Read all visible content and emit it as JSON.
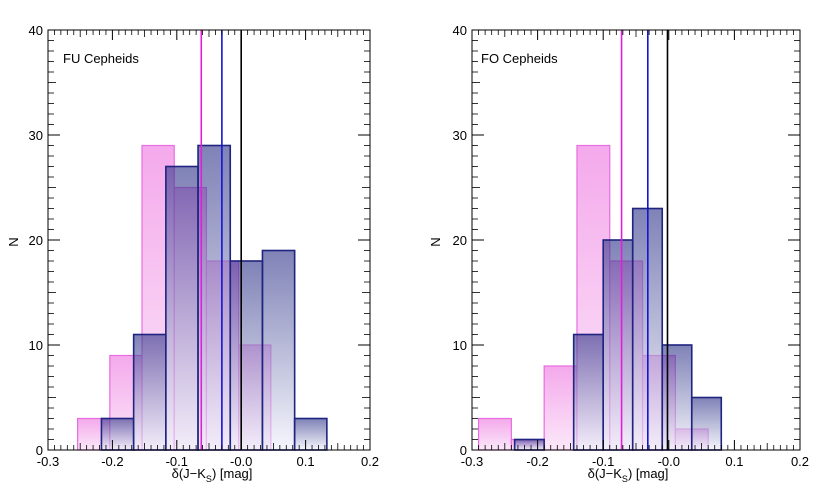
{
  "colors": {
    "blue_dark": "#2a2f86",
    "blue_light": "#eef0fa",
    "blue_edge": "#1f2480",
    "pink_top": "#f29ae8",
    "pink_light": "#fbe4f8",
    "pink_edge": "#e96de0",
    "line_magenta": "#e020d8",
    "line_blue": "#1515d0",
    "line_black": "#000000"
  },
  "chart_data": [
    {
      "type": "histogram",
      "label": "FU Cepheids",
      "xlabel": "δ(J−K_S) [mag]",
      "ylabel": "N",
      "xlim": [
        -0.3,
        0.2
      ],
      "ylim": [
        0,
        40
      ],
      "x_ticks": [
        "-0.3",
        "-0.2",
        "-0.1",
        "-0.0",
        "0.1",
        "0.2"
      ],
      "y_ticks": [
        "0",
        "10",
        "20",
        "30",
        "40"
      ],
      "series": [
        {
          "name": "blue",
          "bins": [
            {
              "x0": -0.217,
              "x1": -0.167,
              "n": 3
            },
            {
              "x0": -0.167,
              "x1": -0.117,
              "n": 11
            },
            {
              "x0": -0.117,
              "x1": -0.067,
              "n": 27
            },
            {
              "x0": -0.067,
              "x1": -0.017,
              "n": 29
            },
            {
              "x0": -0.017,
              "x1": 0.033,
              "n": 18
            },
            {
              "x0": 0.033,
              "x1": 0.083,
              "n": 19
            },
            {
              "x0": 0.083,
              "x1": 0.133,
              "n": 3
            }
          ]
        },
        {
          "name": "magenta",
          "bins": [
            {
              "x0": -0.254,
              "x1": -0.204,
              "n": 3
            },
            {
              "x0": -0.204,
              "x1": -0.154,
              "n": 9
            },
            {
              "x0": -0.154,
              "x1": -0.104,
              "n": 29
            },
            {
              "x0": -0.104,
              "x1": -0.054,
              "n": 25
            },
            {
              "x0": -0.054,
              "x1": -0.004,
              "n": 18
            },
            {
              "x0": -0.004,
              "x1": 0.046,
              "n": 10
            }
          ]
        }
      ],
      "vlines": [
        {
          "name": "magenta-mean",
          "x": -0.062
        },
        {
          "name": "blue-mean",
          "x": -0.03
        },
        {
          "name": "zero",
          "x": 0.0
        }
      ]
    },
    {
      "type": "histogram",
      "label": "FO Cepheids",
      "xlabel": "δ(J−K_S) [mag]",
      "ylabel": "N",
      "xlim": [
        -0.3,
        0.2
      ],
      "ylim": [
        0,
        40
      ],
      "x_ticks": [
        "-0.3",
        "-0.2",
        "-0.1",
        "-0.0",
        "0.1",
        "0.2"
      ],
      "y_ticks": [
        "0",
        "10",
        "20",
        "30",
        "40"
      ],
      "series": [
        {
          "name": "blue",
          "bins": [
            {
              "x0": -0.235,
              "x1": -0.19,
              "n": 1
            },
            {
              "x0": -0.145,
              "x1": -0.1,
              "n": 11
            },
            {
              "x0": -0.1,
              "x1": -0.055,
              "n": 20
            },
            {
              "x0": -0.055,
              "x1": -0.01,
              "n": 23
            },
            {
              "x0": -0.01,
              "x1": 0.035,
              "n": 10
            },
            {
              "x0": 0.035,
              "x1": 0.08,
              "n": 5
            }
          ]
        },
        {
          "name": "magenta",
          "bins": [
            {
              "x0": -0.29,
              "x1": -0.24,
              "n": 3
            },
            {
              "x0": -0.24,
              "x1": -0.19,
              "n": 1
            },
            {
              "x0": -0.19,
              "x1": -0.14,
              "n": 8
            },
            {
              "x0": -0.14,
              "x1": -0.09,
              "n": 29
            },
            {
              "x0": -0.09,
              "x1": -0.04,
              "n": 18
            },
            {
              "x0": -0.04,
              "x1": 0.01,
              "n": 9
            },
            {
              "x0": 0.01,
              "x1": 0.06,
              "n": 2
            }
          ]
        }
      ],
      "vlines": [
        {
          "name": "magenta-mean",
          "x": -0.072
        },
        {
          "name": "blue-mean",
          "x": -0.032
        },
        {
          "name": "zero",
          "x": -0.002
        }
      ]
    }
  ]
}
